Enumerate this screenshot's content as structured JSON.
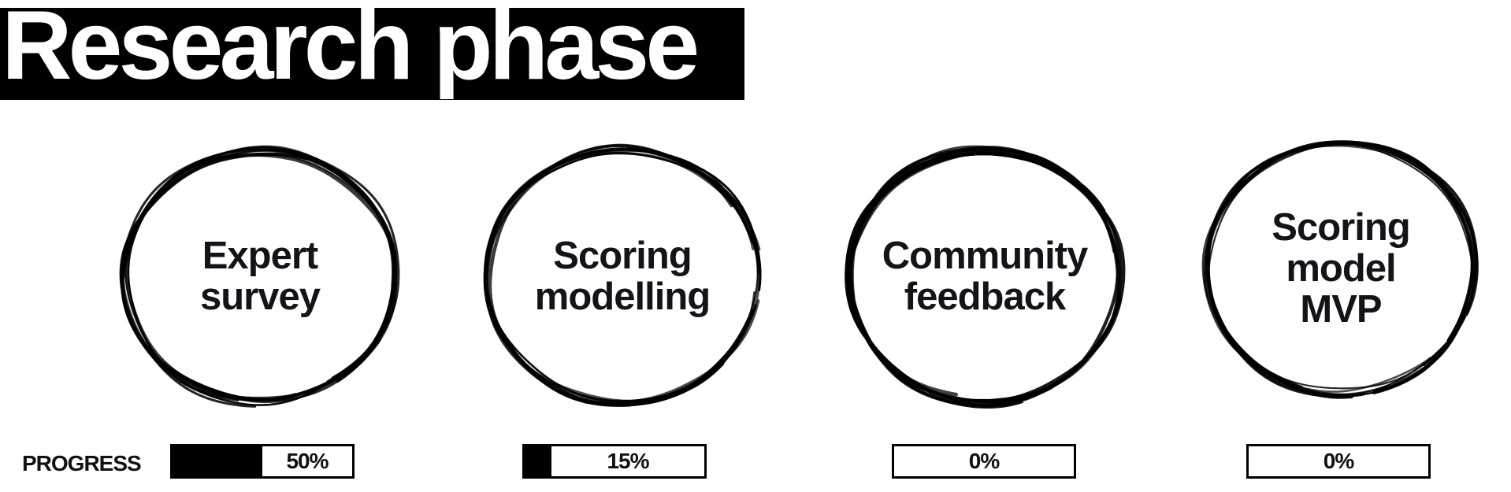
{
  "title": "Research phase",
  "progress_label": "PROGRESS",
  "stages": [
    {
      "label_lines": [
        "Expert",
        "survey"
      ],
      "progress_percent": 50,
      "progress_text": "50%"
    },
    {
      "label_lines": [
        "Scoring",
        "modelling"
      ],
      "progress_percent": 15,
      "progress_text": "15%"
    },
    {
      "label_lines": [
        "Community",
        "feedback"
      ],
      "progress_percent": 0,
      "progress_text": "0%"
    },
    {
      "label_lines": [
        "Scoring",
        "model",
        "MVP"
      ],
      "progress_percent": 0,
      "progress_text": "0%"
    }
  ],
  "colors": {
    "background": "#ffffff",
    "ink": "#000000",
    "label_text": "#15131a"
  },
  "icons": {
    "stage_ring": "brush-circle-icon"
  }
}
